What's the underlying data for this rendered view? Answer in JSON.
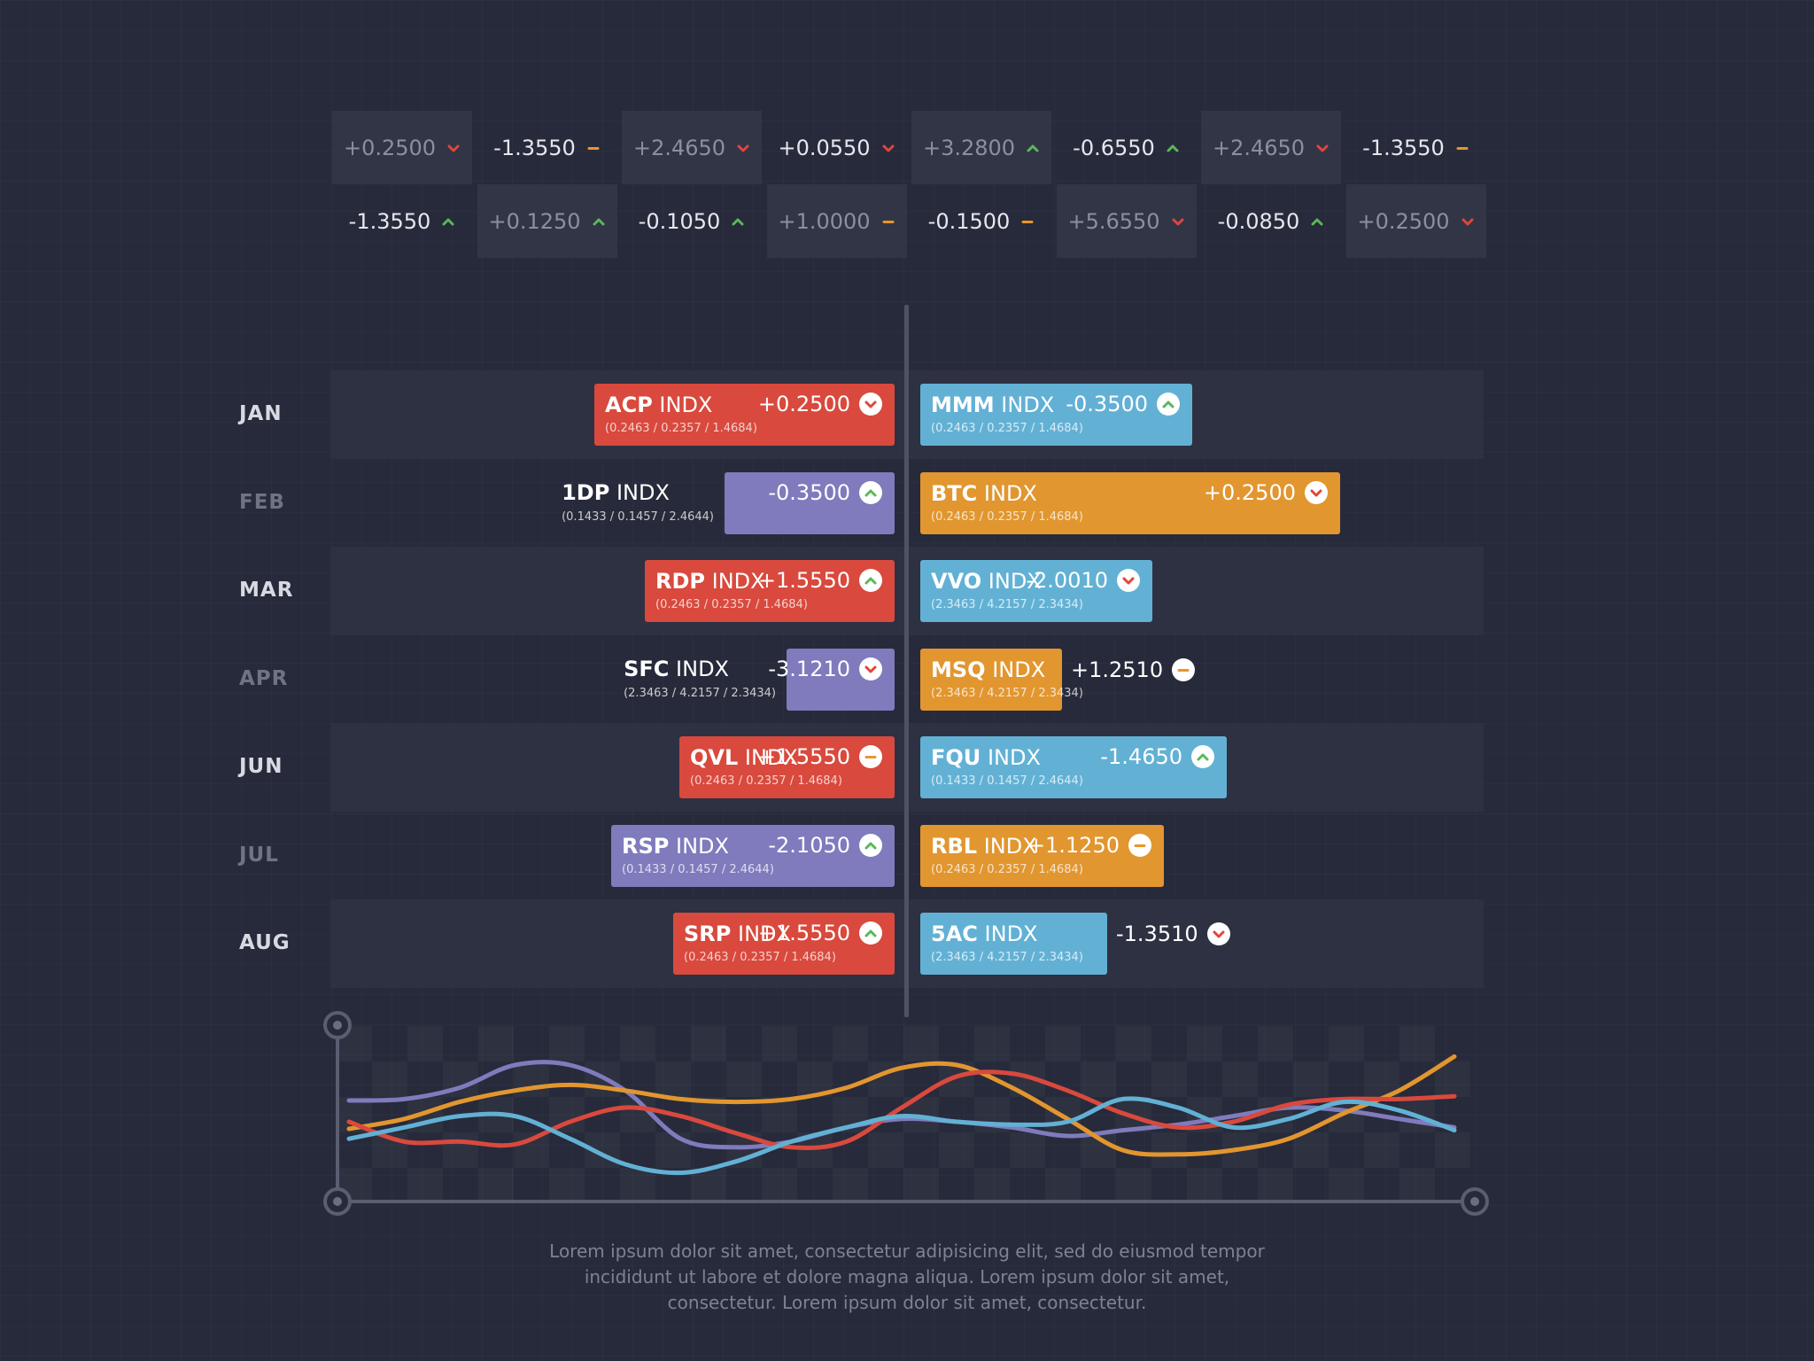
{
  "ticker": {
    "row1": [
      {
        "value": "+0.2500",
        "dir": "down",
        "shade": true
      },
      {
        "value": "-1.3550",
        "dir": "flat",
        "shade": false
      },
      {
        "value": "+2.4650",
        "dir": "down",
        "shade": true
      },
      {
        "value": "+0.0550",
        "dir": "down",
        "shade": false
      },
      {
        "value": "+3.2800",
        "dir": "up",
        "shade": true
      },
      {
        "value": "-0.6550",
        "dir": "up",
        "shade": false
      },
      {
        "value": "+2.4650",
        "dir": "down",
        "shade": true
      },
      {
        "value": "-1.3550",
        "dir": "flat",
        "shade": false
      }
    ],
    "row2": [
      {
        "value": "-1.3550",
        "dir": "up",
        "shade": false
      },
      {
        "value": "+0.1250",
        "dir": "up",
        "shade": true
      },
      {
        "value": "-0.1050",
        "dir": "up",
        "shade": false
      },
      {
        "value": "+1.0000",
        "dir": "flat",
        "shade": true
      },
      {
        "value": "-0.1500",
        "dir": "flat",
        "shade": false
      },
      {
        "value": "+5.6550",
        "dir": "down",
        "shade": true
      },
      {
        "value": "-0.0850",
        "dir": "up",
        "shade": false
      },
      {
        "value": "+0.2500",
        "dir": "down",
        "shade": true
      }
    ]
  },
  "colors": {
    "red": "#d9493d",
    "purple": "#7f7bbd",
    "blue": "#62b1d5",
    "orange": "#e2962f",
    "arrow_up": "#59b85a",
    "arrow_down": "#e0463c",
    "arrow_flat": "#e8962c"
  },
  "chart_data": [
    {
      "type": "bar",
      "categories": [
        "JAN",
        "FEB",
        "MAR",
        "APR",
        "JUN",
        "JUL",
        "AUG"
      ],
      "left": [
        {
          "month": "JAN",
          "ticker": "ACP",
          "suffix": "INDX",
          "sub": "(0.2463 / 0.2357 / 1.4684)",
          "value": "+0.2500",
          "dir": "down",
          "color": "red",
          "magnitude": 0.53
        },
        {
          "month": "FEB",
          "ticker": "1DP",
          "suffix": "INDX",
          "sub": "(0.1433 / 0.1457 / 2.4644)",
          "value": "-0.3500",
          "dir": "up",
          "color": "purple",
          "magnitude": 0.3
        },
        {
          "month": "MAR",
          "ticker": "RDP",
          "suffix": "INDX",
          "sub": "(0.2463 / 0.2357 / 1.4684)",
          "value": "+1.5550",
          "dir": "up",
          "color": "red",
          "magnitude": 0.44
        },
        {
          "month": "APR",
          "ticker": "SFC",
          "suffix": "INDX",
          "sub": "(2.3463 / 4.2157 / 2.3434)",
          "value": "-3.1210",
          "dir": "down",
          "color": "purple",
          "magnitude": 0.19
        },
        {
          "month": "JUN",
          "ticker": "QVL",
          "suffix": "INDX",
          "sub": "(0.2463 / 0.2357 / 1.4684)",
          "value": "+1.5550",
          "dir": "flat",
          "color": "red",
          "magnitude": 0.38
        },
        {
          "month": "JUL",
          "ticker": "RSP",
          "suffix": "INDX",
          "sub": "(0.1433 / 0.1457 / 2.4644)",
          "value": "-2.1050",
          "dir": "up",
          "color": "purple",
          "magnitude": 0.5
        },
        {
          "month": "AUG",
          "ticker": "SRP",
          "suffix": "INDX",
          "sub": "(0.2463 / 0.2357 / 1.4684)",
          "value": "+1.5550",
          "dir": "up",
          "color": "red",
          "magnitude": 0.39
        }
      ],
      "right": [
        {
          "month": "JAN",
          "ticker": "MMM",
          "suffix": "INDX",
          "sub": "(0.2463 / 0.2357 / 1.4684)",
          "value": "-0.3500",
          "dir": "up",
          "color": "blue",
          "magnitude": 0.48
        },
        {
          "month": "FEB",
          "ticker": "BTC",
          "suffix": "INDX",
          "sub": "(0.2463 / 0.2357 / 1.4684)",
          "value": "+0.2500",
          "dir": "down",
          "color": "orange",
          "magnitude": 0.74
        },
        {
          "month": "MAR",
          "ticker": "VVO",
          "suffix": "INDX",
          "sub": "(2.3463 / 4.2157 / 2.3434)",
          "value": "-2.0010",
          "dir": "down",
          "color": "blue",
          "magnitude": 0.41
        },
        {
          "month": "APR",
          "ticker": "MSQ",
          "suffix": "INDX",
          "sub": "(2.3463 / 4.2157 / 2.3434)",
          "value": "+1.2510",
          "dir": "flat",
          "color": "orange",
          "magnitude": 0.25
        },
        {
          "month": "JUN",
          "ticker": "FQU",
          "suffix": "INDX",
          "sub": "(0.1433 / 0.1457 / 2.4644)",
          "value": "-1.4650",
          "dir": "up",
          "color": "blue",
          "magnitude": 0.54
        },
        {
          "month": "JUL",
          "ticker": "RBL",
          "suffix": "INDX",
          "sub": "(0.2463 / 0.2357 / 1.4684)",
          "value": "+1.1250",
          "dir": "flat",
          "color": "orange",
          "magnitude": 0.43
        },
        {
          "month": "AUG",
          "ticker": "5AC",
          "suffix": "INDX",
          "sub": "(2.3463 / 4.2157 / 2.3434)",
          "value": "-1.3510",
          "dir": "down",
          "color": "blue",
          "magnitude": 0.33
        }
      ]
    },
    {
      "type": "line",
      "ylim": [
        0,
        1
      ],
      "x": [
        0,
        0.05,
        0.1,
        0.15,
        0.2,
        0.25,
        0.3,
        0.35,
        0.4,
        0.45,
        0.5,
        0.55,
        0.6,
        0.65,
        0.7,
        0.75,
        0.8,
        0.85,
        0.9,
        0.95,
        1.0
      ],
      "series": [
        {
          "color": "purple",
          "values": [
            0.55,
            0.56,
            0.64,
            0.8,
            0.8,
            0.62,
            0.28,
            0.22,
            0.26,
            0.36,
            0.42,
            0.4,
            0.36,
            0.3,
            0.34,
            0.38,
            0.44,
            0.5,
            0.48,
            0.42,
            0.36
          ]
        },
        {
          "color": "orange",
          "values": [
            0.35,
            0.42,
            0.54,
            0.62,
            0.66,
            0.62,
            0.56,
            0.54,
            0.56,
            0.64,
            0.78,
            0.8,
            0.64,
            0.42,
            0.2,
            0.17,
            0.2,
            0.28,
            0.46,
            0.62,
            0.86
          ]
        },
        {
          "color": "red",
          "values": [
            0.4,
            0.26,
            0.26,
            0.24,
            0.4,
            0.5,
            0.44,
            0.32,
            0.22,
            0.26,
            0.5,
            0.72,
            0.74,
            0.62,
            0.46,
            0.36,
            0.4,
            0.52,
            0.56,
            0.56,
            0.58
          ]
        },
        {
          "color": "blue",
          "values": [
            0.28,
            0.36,
            0.44,
            0.44,
            0.28,
            0.1,
            0.04,
            0.12,
            0.26,
            0.36,
            0.44,
            0.4,
            0.38,
            0.4,
            0.56,
            0.5,
            0.36,
            0.42,
            0.54,
            0.48,
            0.34
          ]
        }
      ]
    }
  ],
  "footer": {
    "lines": [
      "Lorem ipsum dolor sit amet, consectetur adipisicing elit, sed do eiusmod tempor",
      "incididunt ut labore et dolore magna aliqua. Lorem ipsum dolor sit amet,",
      "consectetur. Lorem ipsum dolor sit amet, consectetur."
    ]
  }
}
